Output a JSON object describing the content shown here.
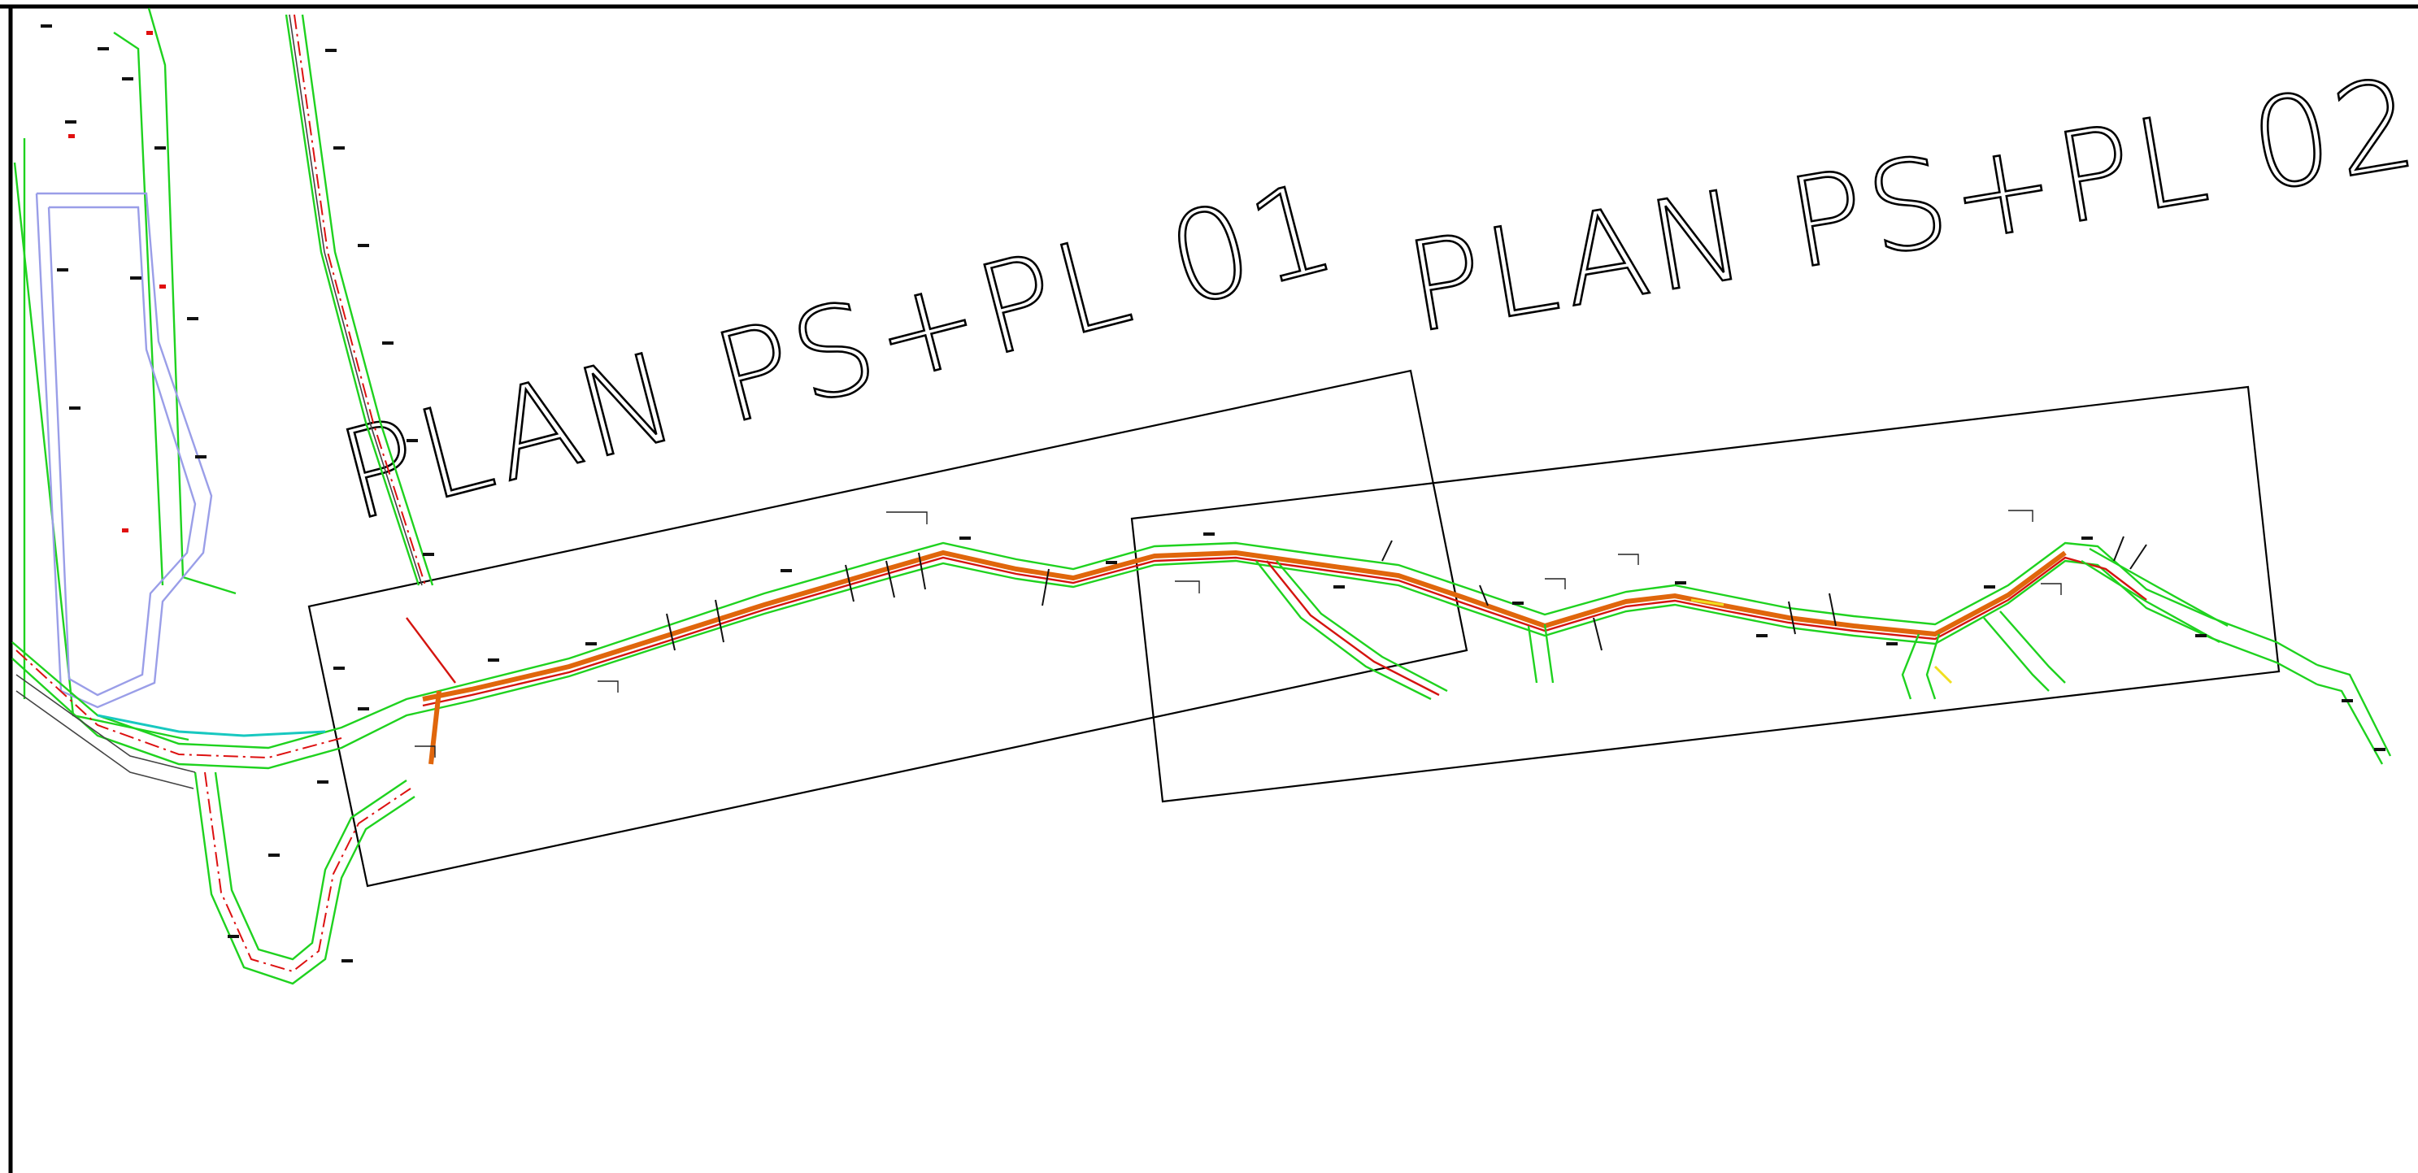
{
  "sheet_labels": [
    {
      "id": "plan-01",
      "text": "PLAN PS+PL 01"
    },
    {
      "id": "plan-02",
      "text": "PLAN PS+PL 02"
    }
  ],
  "colors": {
    "road_edge": "#1fd21f",
    "centerline": "#d11111",
    "pipeline": "#e0660c",
    "building_outline": "#9a9ee8",
    "service_line": "#18c8c0",
    "markers": "#111111",
    "frame": "#000000"
  }
}
